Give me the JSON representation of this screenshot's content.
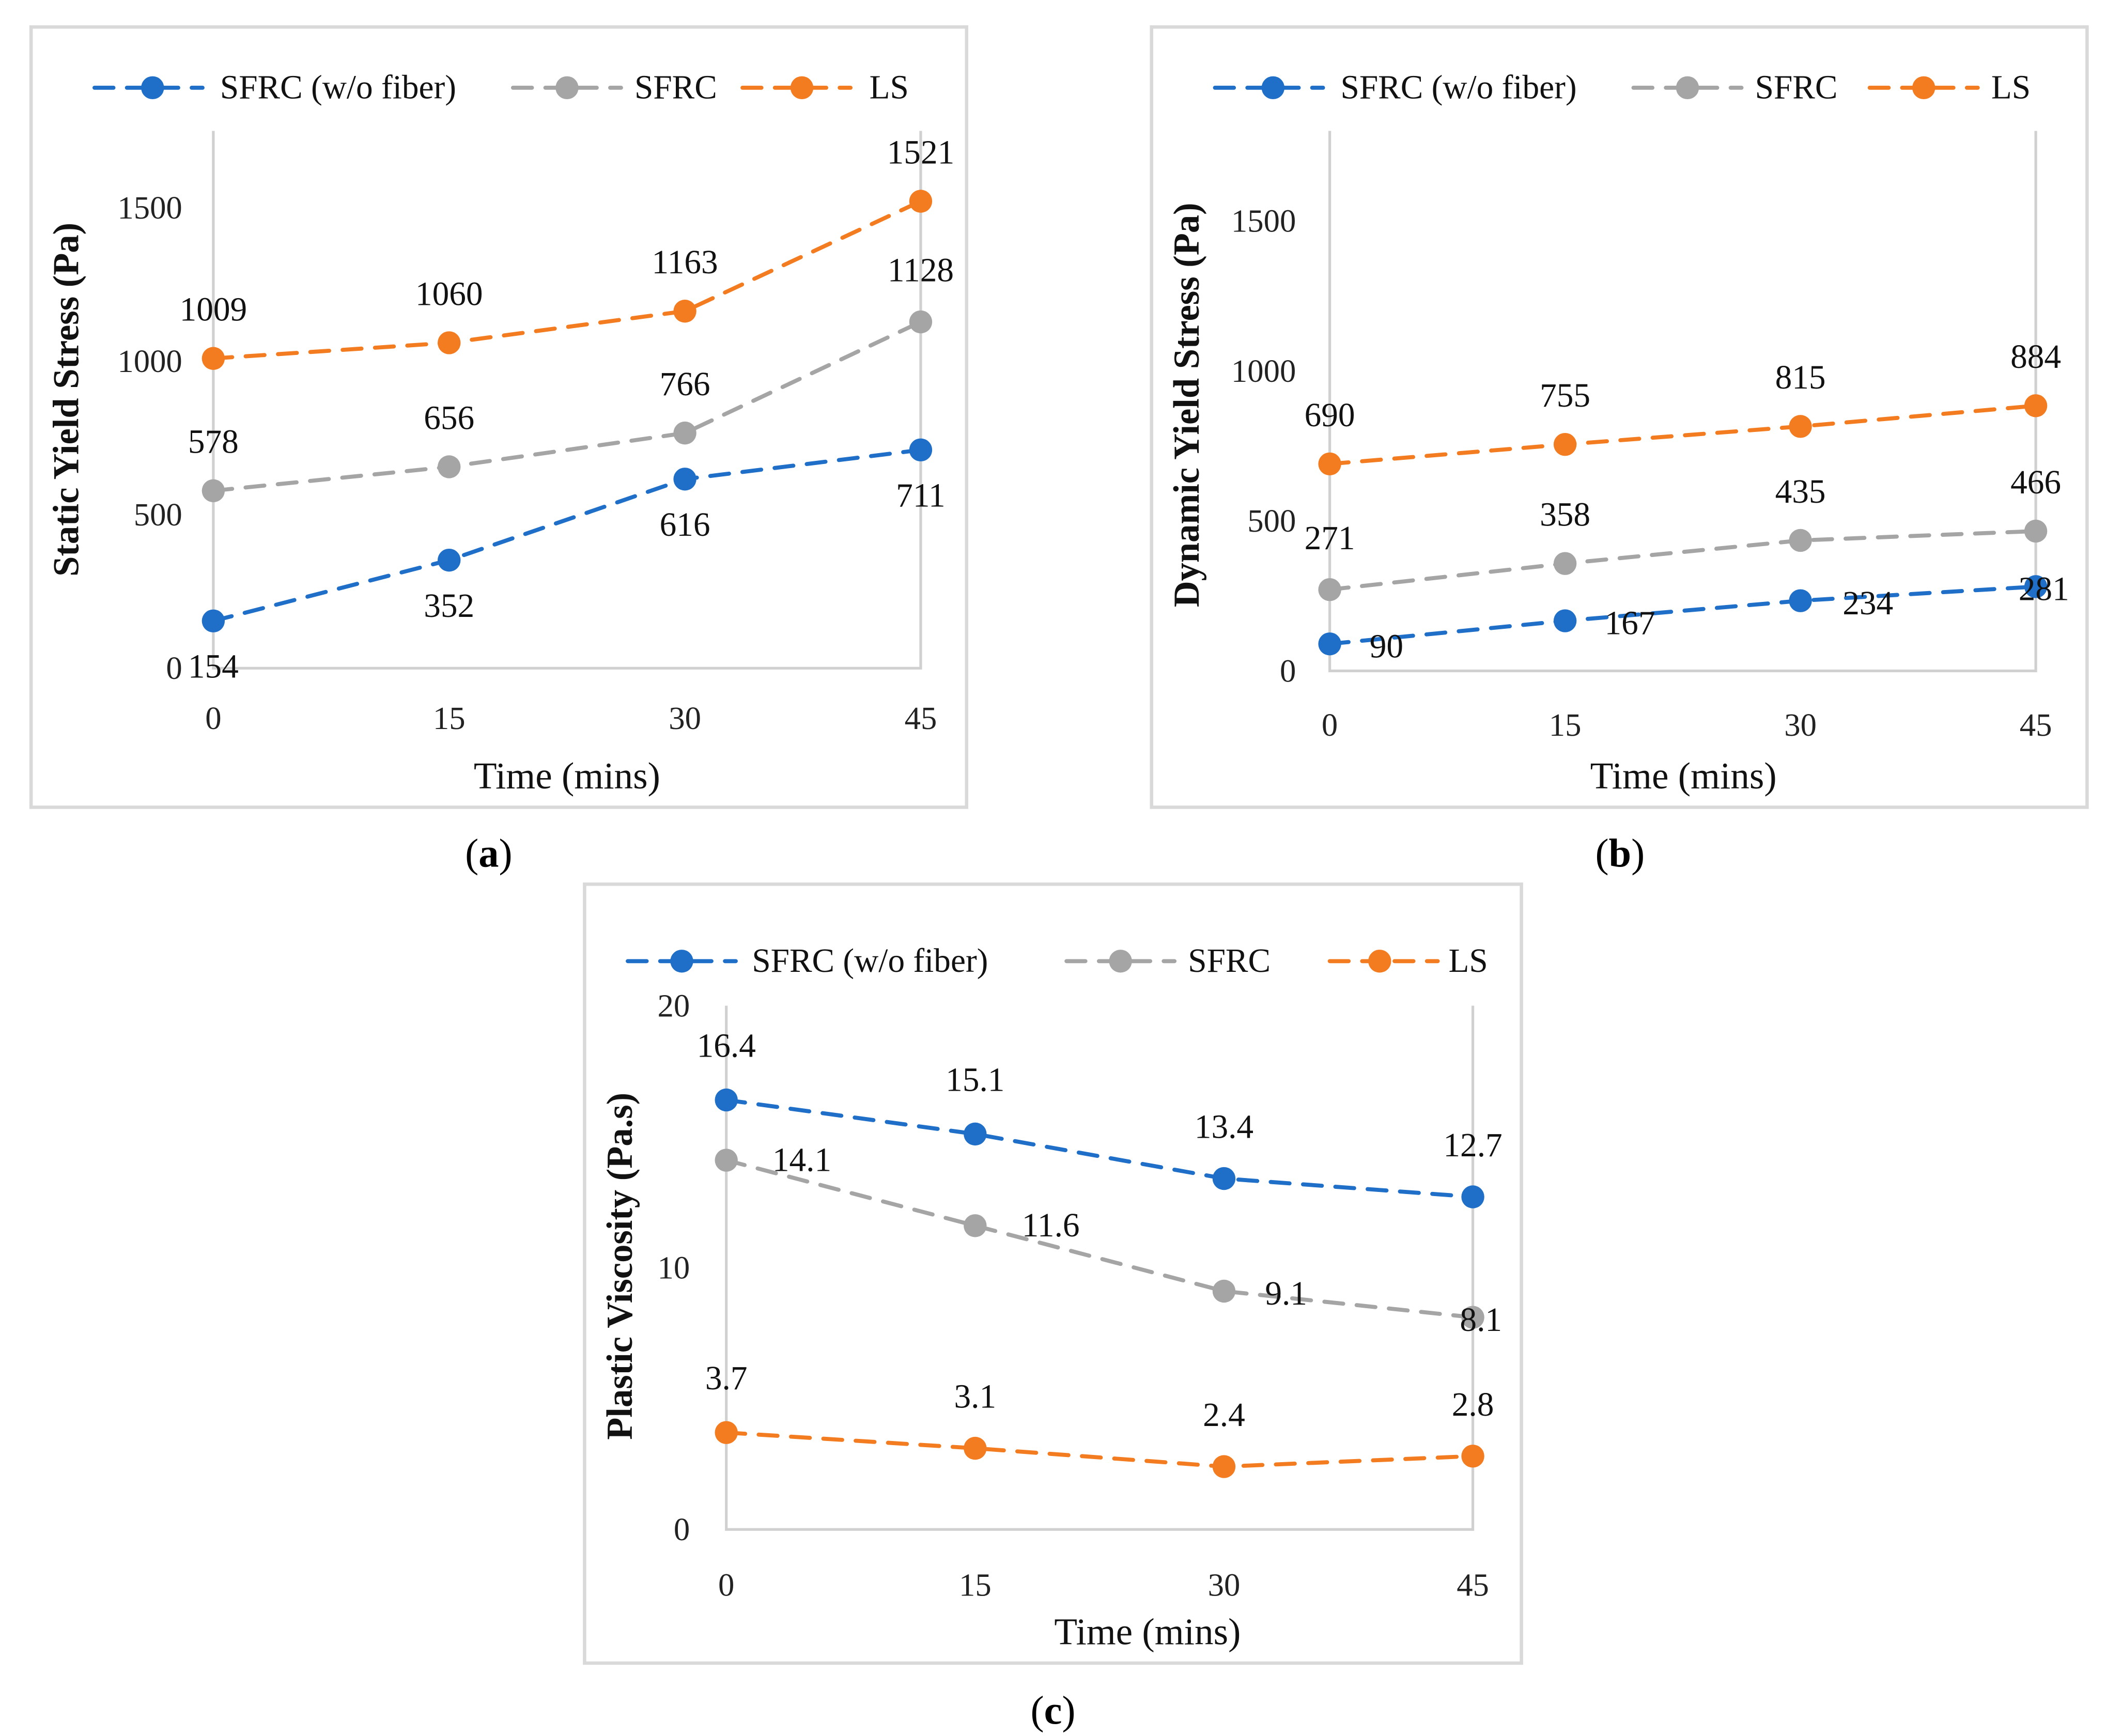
{
  "colors": {
    "SFRC (w/o fiber)": "#1f6fc8",
    "SFRC": "#a5a5a5",
    "LS": "#f47c20"
  },
  "chart_data": [
    {
      "type": "line",
      "caption": "a",
      "title": "",
      "xlabel": "Time (mins)",
      "ylabel": "Static Yield Stress (Pa)",
      "x": [
        0,
        15,
        30,
        45
      ],
      "xticks": [
        "0",
        "15",
        "30",
        "45"
      ],
      "yticks": [
        "0",
        "500",
        "1000",
        "1500"
      ],
      "ytick_values": [
        0,
        500,
        1000,
        1500
      ],
      "ylim": [
        0,
        1750
      ],
      "legend": "top",
      "series": [
        {
          "name": "SFRC (w/o fiber)",
          "values": [
            154,
            352,
            616,
            711
          ],
          "labels": [
            "154",
            "352",
            "616",
            "711"
          ]
        },
        {
          "name": "SFRC",
          "values": [
            578,
            656,
            766,
            1128
          ],
          "labels": [
            "578",
            "656",
            "766",
            "1128"
          ]
        },
        {
          "name": "LS",
          "values": [
            1009,
            1060,
            1163,
            1521
          ],
          "labels": [
            "1009",
            "1060",
            "1163",
            "1521"
          ]
        }
      ]
    },
    {
      "type": "line",
      "caption": "b",
      "title": "",
      "xlabel": "Time (mins)",
      "ylabel": "Dynamic Yield Stress (Pa)",
      "x": [
        0,
        15,
        30,
        45
      ],
      "xticks": [
        "0",
        "15",
        "30",
        "45"
      ],
      "yticks": [
        "0",
        "500",
        "1000",
        "1500"
      ],
      "ytick_values": [
        0,
        500,
        1000,
        1500
      ],
      "ylim": [
        0,
        1800
      ],
      "legend": "top",
      "series": [
        {
          "name": "SFRC (w/o fiber)",
          "values": [
            90,
            167,
            234,
            281
          ],
          "labels": [
            "90",
            "167",
            "234",
            "281"
          ]
        },
        {
          "name": "SFRC",
          "values": [
            271,
            358,
            435,
            466
          ],
          "labels": [
            "271",
            "358",
            "435",
            "466"
          ]
        },
        {
          "name": "LS",
          "values": [
            690,
            755,
            815,
            884
          ],
          "labels": [
            "690",
            "755",
            "815",
            "884"
          ]
        }
      ]
    },
    {
      "type": "line",
      "caption": "c",
      "title": "",
      "xlabel": "Time (mins)",
      "ylabel": "Plastic Viscosity (Pa.s)",
      "x": [
        0,
        15,
        30,
        45
      ],
      "xticks": [
        "0",
        "15",
        "30",
        "45"
      ],
      "yticks": [
        "0",
        "10",
        "20"
      ],
      "ytick_values": [
        0,
        10,
        20
      ],
      "ylim": [
        0,
        20
      ],
      "legend": "top",
      "series": [
        {
          "name": "SFRC (w/o fiber)",
          "values": [
            16.4,
            15.1,
            13.4,
            12.7
          ],
          "labels": [
            "16.4",
            "15.1",
            "13.4",
            "12.7"
          ]
        },
        {
          "name": "SFRC",
          "values": [
            14.1,
            11.6,
            9.1,
            8.1
          ],
          "labels": [
            "14.1",
            "11.6",
            "9.1",
            "8.1"
          ]
        },
        {
          "name": "LS",
          "values": [
            3.7,
            3.1,
            2.4,
            2.8
          ],
          "labels": [
            "3.7",
            "3.1",
            "2.4",
            "2.8"
          ]
        }
      ]
    }
  ]
}
